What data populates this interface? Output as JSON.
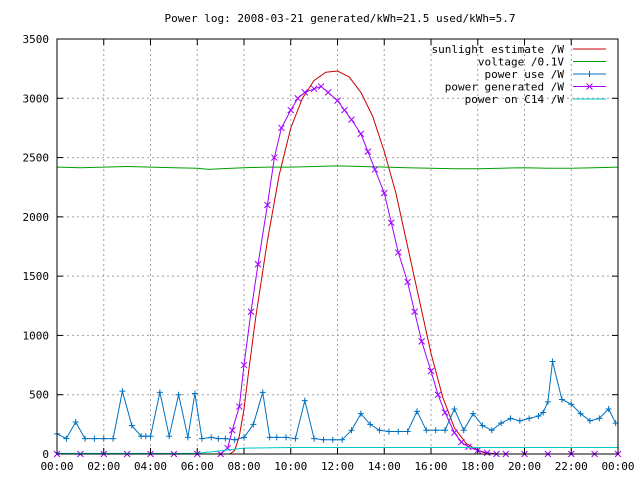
{
  "chart_data": {
    "type": "line",
    "title": "Power log: 2008-03-21 generated/kWh=21.5 used/kWh=5.7",
    "xlabel": "",
    "ylabel": "",
    "xlim": [
      0,
      24
    ],
    "ylim": [
      0,
      3500
    ],
    "grid": true,
    "legend_position": "top-right",
    "x_tick_labels": [
      "00:00",
      "02:00",
      "04:00",
      "06:00",
      "08:00",
      "10:00",
      "12:00",
      "14:00",
      "16:00",
      "18:00",
      "20:00",
      "22:00",
      "00:00"
    ],
    "x_ticks": [
      0,
      2,
      4,
      6,
      8,
      10,
      12,
      14,
      16,
      18,
      20,
      22,
      24
    ],
    "y_tick_labels": [
      "0",
      "500",
      "1000",
      "1500",
      "2000",
      "2500",
      "3000",
      "3500"
    ],
    "y_ticks": [
      0,
      500,
      1000,
      1500,
      2000,
      2500,
      3000,
      3500
    ],
    "series": [
      {
        "name": "sunlight estimate /W",
        "color": "#cc0000",
        "marker": "none",
        "x": [
          7.4,
          7.6,
          7.8,
          8.0,
          8.2,
          8.5,
          9.0,
          9.5,
          10.0,
          10.5,
          11.0,
          11.5,
          12.0,
          12.5,
          13.0,
          13.5,
          14.0,
          14.5,
          15.0,
          15.5,
          16.0,
          16.5,
          17.0,
          17.5,
          18.0,
          18.3,
          18.6,
          18.8
        ],
        "y": [
          0,
          30,
          150,
          380,
          700,
          1150,
          1800,
          2350,
          2750,
          3000,
          3150,
          3220,
          3230,
          3180,
          3050,
          2850,
          2550,
          2200,
          1750,
          1300,
          850,
          480,
          220,
          90,
          30,
          10,
          3,
          0
        ]
      },
      {
        "name": "voltage /0.1V",
        "color": "#00a000",
        "marker": "none",
        "x": [
          0,
          1,
          2,
          3,
          4,
          5,
          6,
          6.5,
          7,
          7.5,
          8,
          9,
          10,
          11,
          12,
          13,
          14,
          15,
          16,
          17,
          18,
          19,
          20,
          21,
          22,
          23,
          24
        ],
        "y": [
          2420,
          2415,
          2420,
          2425,
          2420,
          2415,
          2410,
          2400,
          2405,
          2410,
          2415,
          2420,
          2420,
          2425,
          2430,
          2425,
          2420,
          2415,
          2410,
          2405,
          2405,
          2410,
          2415,
          2410,
          2410,
          2415,
          2420
        ]
      },
      {
        "name": "power use /W",
        "color": "#0070c0",
        "marker": "plus",
        "x": [
          0,
          0.4,
          0.8,
          1.2,
          1.6,
          2.0,
          2.4,
          2.8,
          3.2,
          3.6,
          3.8,
          4.0,
          4.4,
          4.8,
          5.2,
          5.6,
          5.9,
          6.2,
          6.6,
          6.9,
          7.2,
          7.6,
          8.0,
          8.4,
          8.8,
          9.1,
          9.4,
          9.8,
          10.2,
          10.6,
          11.0,
          11.4,
          11.8,
          12.2,
          12.6,
          13.0,
          13.4,
          13.8,
          14.2,
          14.6,
          15.0,
          15.4,
          15.8,
          16.2,
          16.6,
          17.0,
          17.4,
          17.8,
          18.2,
          18.6,
          19.0,
          19.4,
          19.8,
          20.2,
          20.6,
          20.8,
          21.0,
          21.2,
          21.6,
          22.0,
          22.4,
          22.8,
          23.2,
          23.6,
          23.9
        ],
        "y": [
          170,
          130,
          270,
          130,
          130,
          130,
          130,
          530,
          240,
          150,
          150,
          150,
          520,
          150,
          500,
          140,
          510,
          130,
          140,
          130,
          130,
          120,
          140,
          250,
          520,
          140,
          140,
          140,
          130,
          450,
          130,
          120,
          120,
          120,
          200,
          340,
          250,
          200,
          190,
          190,
          190,
          360,
          200,
          200,
          200,
          380,
          200,
          340,
          240,
          200,
          260,
          300,
          280,
          300,
          320,
          350,
          440,
          780,
          460,
          420,
          340,
          280,
          300,
          380,
          260
        ]
      },
      {
        "name": "power generated /W",
        "color": "#a000ff",
        "marker": "x",
        "x": [
          0,
          1,
          2,
          3,
          4,
          5,
          6,
          7.0,
          7.3,
          7.5,
          7.8,
          8.0,
          8.3,
          8.6,
          9.0,
          9.3,
          9.6,
          10.0,
          10.3,
          10.6,
          11.0,
          11.3,
          11.6,
          12.0,
          12.3,
          12.6,
          13.0,
          13.3,
          13.6,
          14.0,
          14.3,
          14.6,
          15.0,
          15.3,
          15.6,
          16.0,
          16.3,
          16.6,
          17.0,
          17.3,
          17.6,
          18.0,
          18.4,
          18.8,
          19.2,
          20,
          21,
          22,
          23,
          24
        ],
        "y": [
          0,
          0,
          0,
          0,
          0,
          0,
          0,
          0,
          50,
          200,
          400,
          750,
          1200,
          1600,
          2100,
          2500,
          2750,
          2900,
          3000,
          3050,
          3080,
          3100,
          3050,
          2980,
          2900,
          2820,
          2700,
          2550,
          2400,
          2200,
          1950,
          1700,
          1450,
          1200,
          950,
          700,
          500,
          350,
          180,
          100,
          60,
          30,
          10,
          0,
          0,
          0,
          0,
          0,
          0,
          0
        ]
      },
      {
        "name": "power on C14 /W",
        "color": "#00c8c8",
        "marker": "none",
        "x": [
          0,
          6,
          8,
          10,
          12,
          14,
          16,
          18,
          20,
          22,
          24
        ],
        "y": [
          5,
          5,
          50,
          55,
          55,
          55,
          55,
          55,
          55,
          55,
          55
        ]
      }
    ]
  }
}
